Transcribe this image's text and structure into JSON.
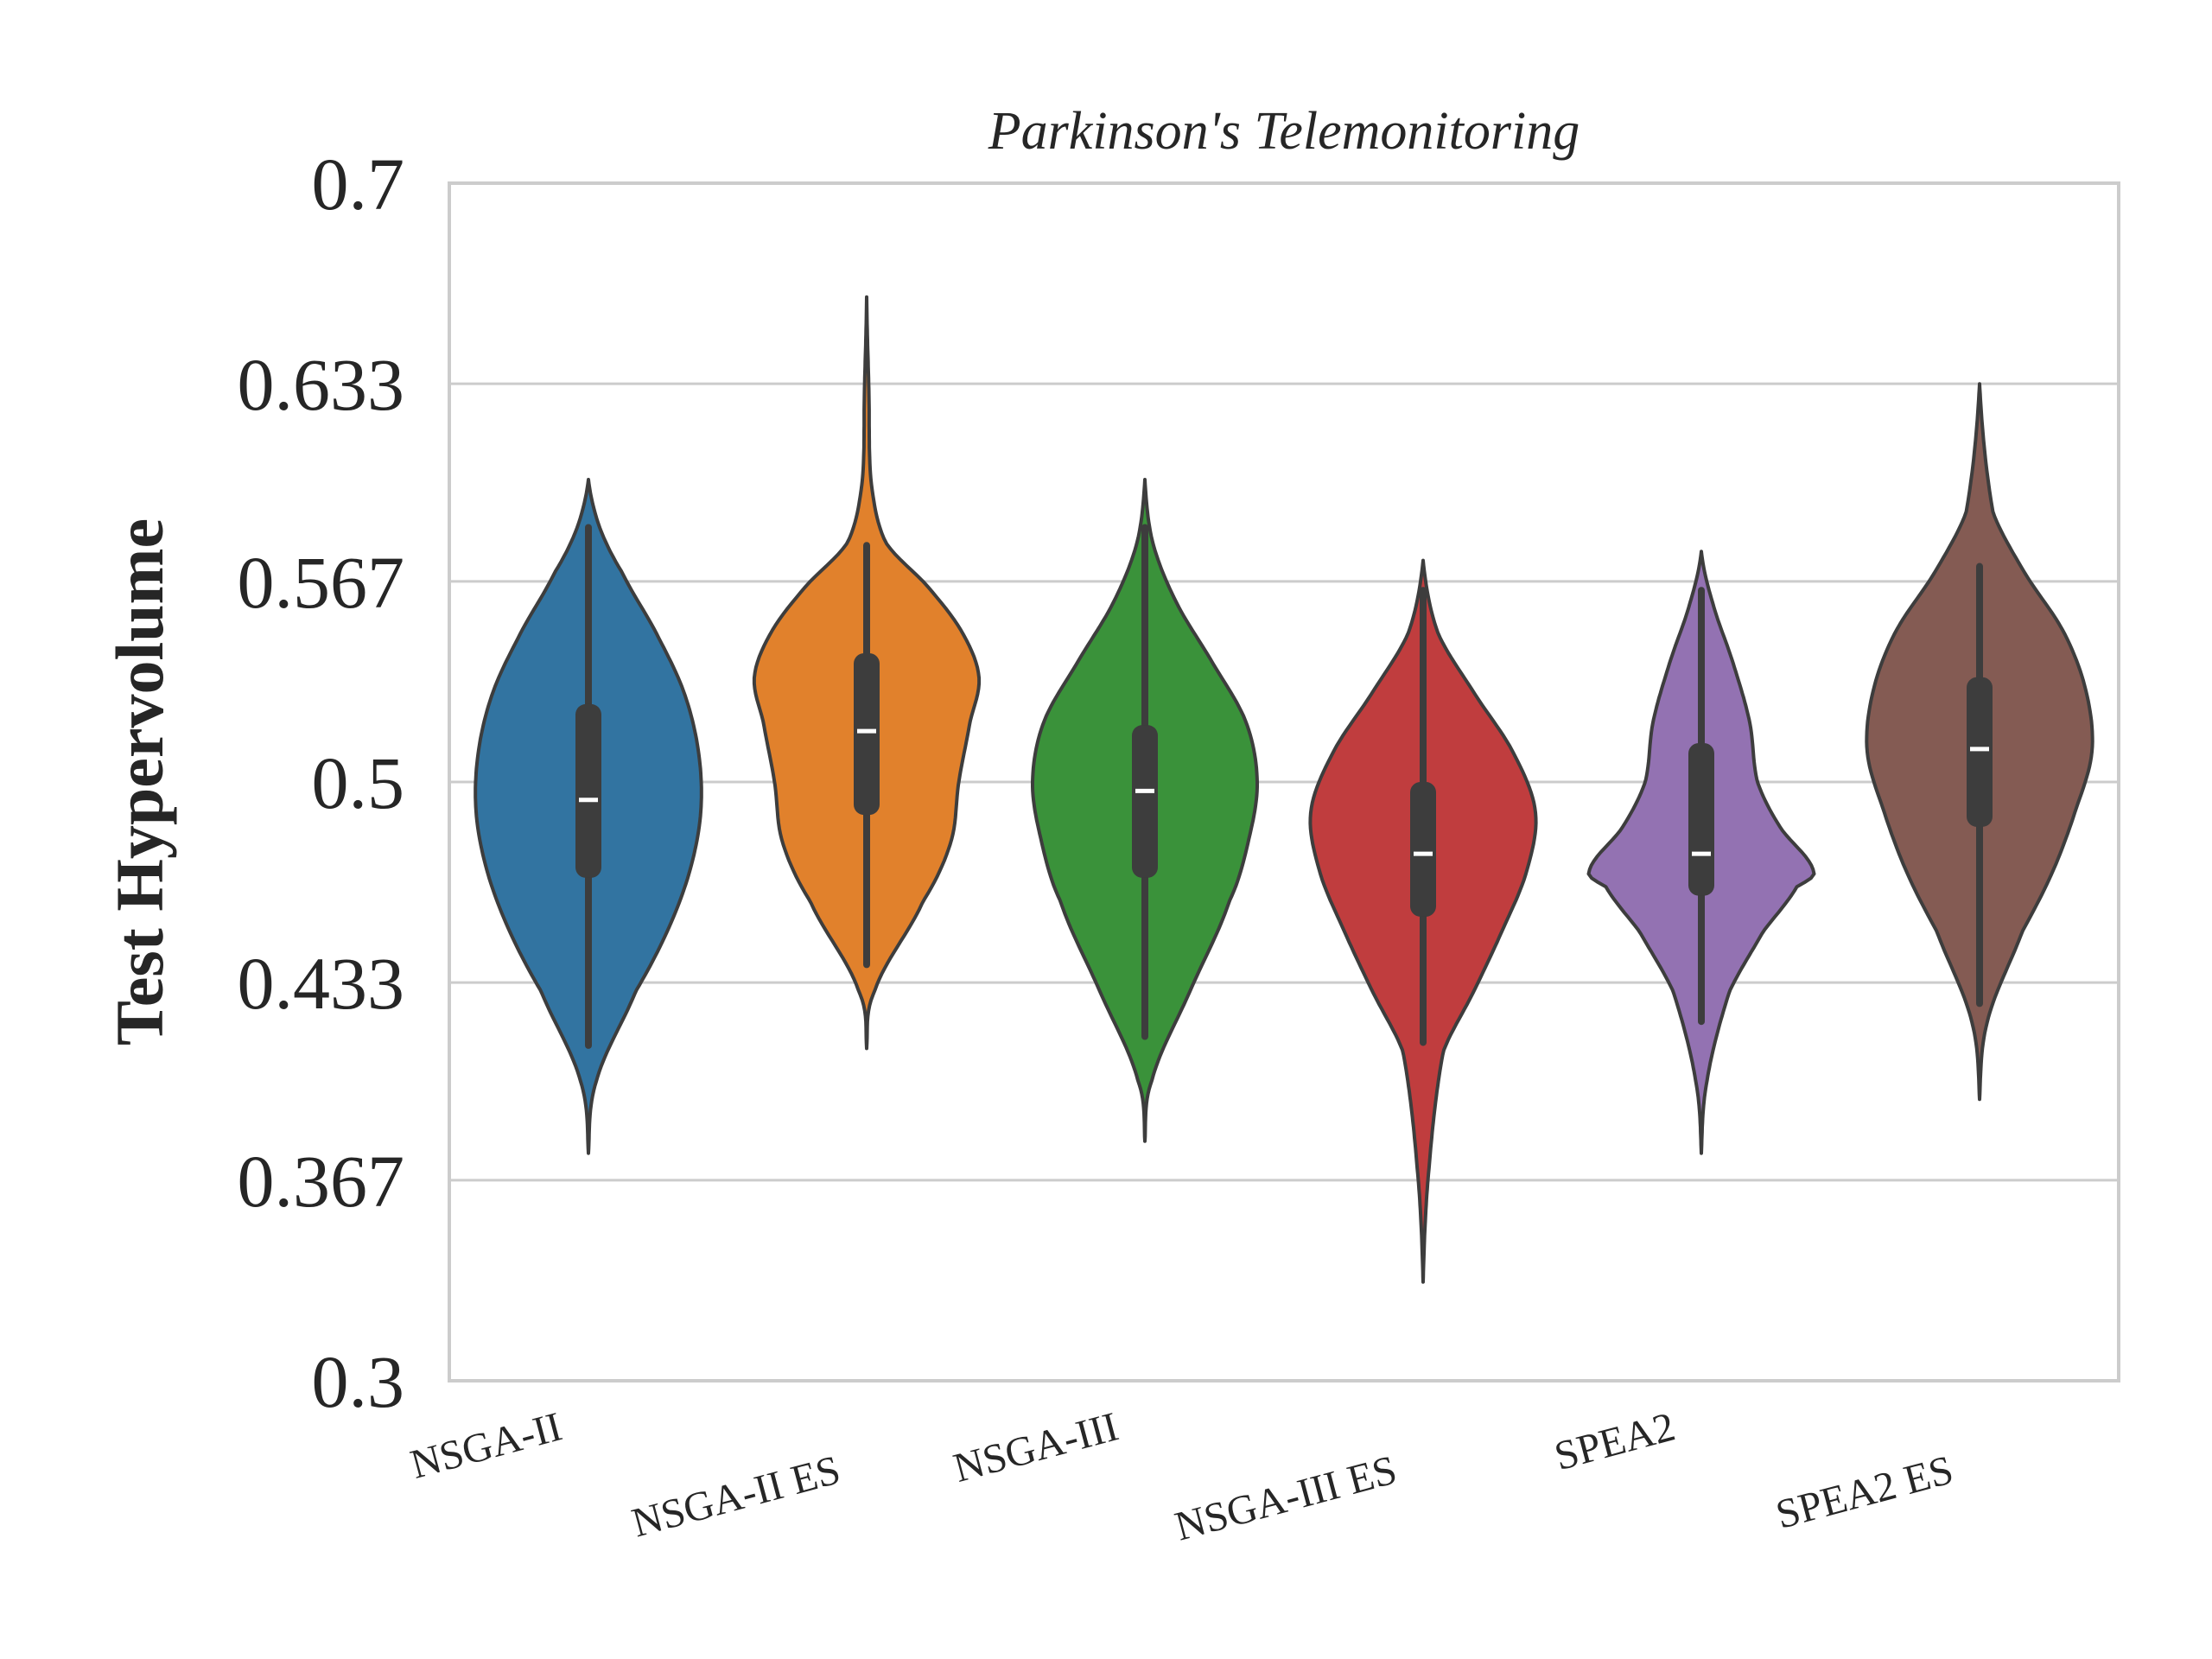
{
  "chart_data": {
    "type": "violin",
    "title": "Parkinson's Telemonitoring",
    "xlabel": "",
    "ylabel": "Test Hypervolume",
    "ylim": [
      0.3,
      0.7
    ],
    "yticks": [
      0.3,
      0.367,
      0.433,
      0.5,
      0.567,
      0.633,
      0.7
    ],
    "ytick_labels": [
      "0.3",
      "0.367",
      "0.433",
      "0.5",
      "0.567",
      "0.633",
      "0.7"
    ],
    "grid": "horizontal",
    "categories": [
      "NSGA-II",
      "NSGA-II ES",
      "NSGA-III",
      "NSGA-III ES",
      "SPEA2",
      "SPEA2 ES"
    ],
    "series": [
      {
        "category": "NSGA-II",
        "color": "#3274a1",
        "min": 0.376,
        "max": 0.601,
        "median": 0.494,
        "q1": 0.468,
        "q3": 0.526,
        "whisker_low": 0.412,
        "whisker_high": 0.585,
        "density": [
          [
            0.376,
            0.0
          ],
          [
            0.4,
            0.07
          ],
          [
            0.43,
            0.42
          ],
          [
            0.45,
            0.7
          ],
          [
            0.47,
            0.9
          ],
          [
            0.49,
            1.0
          ],
          [
            0.51,
            0.98
          ],
          [
            0.53,
            0.85
          ],
          [
            0.55,
            0.6
          ],
          [
            0.57,
            0.3
          ],
          [
            0.585,
            0.1
          ],
          [
            0.601,
            0.0
          ]
        ]
      },
      {
        "category": "NSGA-II ES",
        "color": "#e1812c",
        "min": 0.411,
        "max": 0.662,
        "median": 0.517,
        "q1": 0.489,
        "q3": 0.543,
        "whisker_low": 0.439,
        "whisker_high": 0.579,
        "density": [
          [
            0.411,
            0.0
          ],
          [
            0.43,
            0.07
          ],
          [
            0.46,
            0.5
          ],
          [
            0.48,
            0.75
          ],
          [
            0.5,
            0.82
          ],
          [
            0.52,
            0.92
          ],
          [
            0.535,
            1.0
          ],
          [
            0.55,
            0.85
          ],
          [
            0.565,
            0.55
          ],
          [
            0.58,
            0.17
          ],
          [
            0.6,
            0.04
          ],
          [
            0.63,
            0.02
          ],
          [
            0.662,
            0.0
          ]
        ]
      },
      {
        "category": "NSGA-III",
        "color": "#3a923a",
        "min": 0.38,
        "max": 0.601,
        "median": 0.497,
        "q1": 0.468,
        "q3": 0.519,
        "whisker_low": 0.415,
        "whisker_high": 0.585,
        "density": [
          [
            0.38,
            0.0
          ],
          [
            0.4,
            0.06
          ],
          [
            0.43,
            0.4
          ],
          [
            0.46,
            0.75
          ],
          [
            0.48,
            0.92
          ],
          [
            0.5,
            1.0
          ],
          [
            0.52,
            0.9
          ],
          [
            0.54,
            0.6
          ],
          [
            0.56,
            0.28
          ],
          [
            0.58,
            0.07
          ],
          [
            0.601,
            0.0
          ]
        ]
      },
      {
        "category": "NSGA-III ES",
        "color": "#c03d3e",
        "min": 0.333,
        "max": 0.574,
        "median": 0.476,
        "q1": 0.455,
        "q3": 0.5,
        "whisker_low": 0.413,
        "whisker_high": 0.564,
        "density": [
          [
            0.333,
            0.0
          ],
          [
            0.37,
            0.05
          ],
          [
            0.41,
            0.18
          ],
          [
            0.43,
            0.45
          ],
          [
            0.45,
            0.7
          ],
          [
            0.47,
            0.92
          ],
          [
            0.49,
            1.0
          ],
          [
            0.51,
            0.8
          ],
          [
            0.53,
            0.45
          ],
          [
            0.55,
            0.13
          ],
          [
            0.574,
            0.0
          ]
        ]
      },
      {
        "category": "SPEA2",
        "color": "#9372b2",
        "min": 0.376,
        "max": 0.577,
        "median": 0.476,
        "q1": 0.462,
        "q3": 0.513,
        "whisker_low": 0.42,
        "whisker_high": 0.564,
        "density": [
          [
            0.376,
            0.0
          ],
          [
            0.4,
            0.05
          ],
          [
            0.43,
            0.25
          ],
          [
            0.45,
            0.55
          ],
          [
            0.465,
            0.85
          ],
          [
            0.47,
            1.0
          ],
          [
            0.485,
            0.7
          ],
          [
            0.5,
            0.5
          ],
          [
            0.52,
            0.43
          ],
          [
            0.54,
            0.28
          ],
          [
            0.56,
            0.1
          ],
          [
            0.577,
            0.0
          ]
        ]
      },
      {
        "category": "SPEA2 ES",
        "color": "#845b53",
        "min": 0.394,
        "max": 0.633,
        "median": 0.511,
        "q1": 0.485,
        "q3": 0.535,
        "whisker_low": 0.426,
        "whisker_high": 0.572,
        "density": [
          [
            0.394,
            0.0
          ],
          [
            0.42,
            0.07
          ],
          [
            0.45,
            0.38
          ],
          [
            0.47,
            0.65
          ],
          [
            0.49,
            0.85
          ],
          [
            0.51,
            1.0
          ],
          [
            0.53,
            0.95
          ],
          [
            0.55,
            0.75
          ],
          [
            0.57,
            0.4
          ],
          [
            0.59,
            0.12
          ],
          [
            0.633,
            0.0
          ]
        ]
      }
    ]
  }
}
